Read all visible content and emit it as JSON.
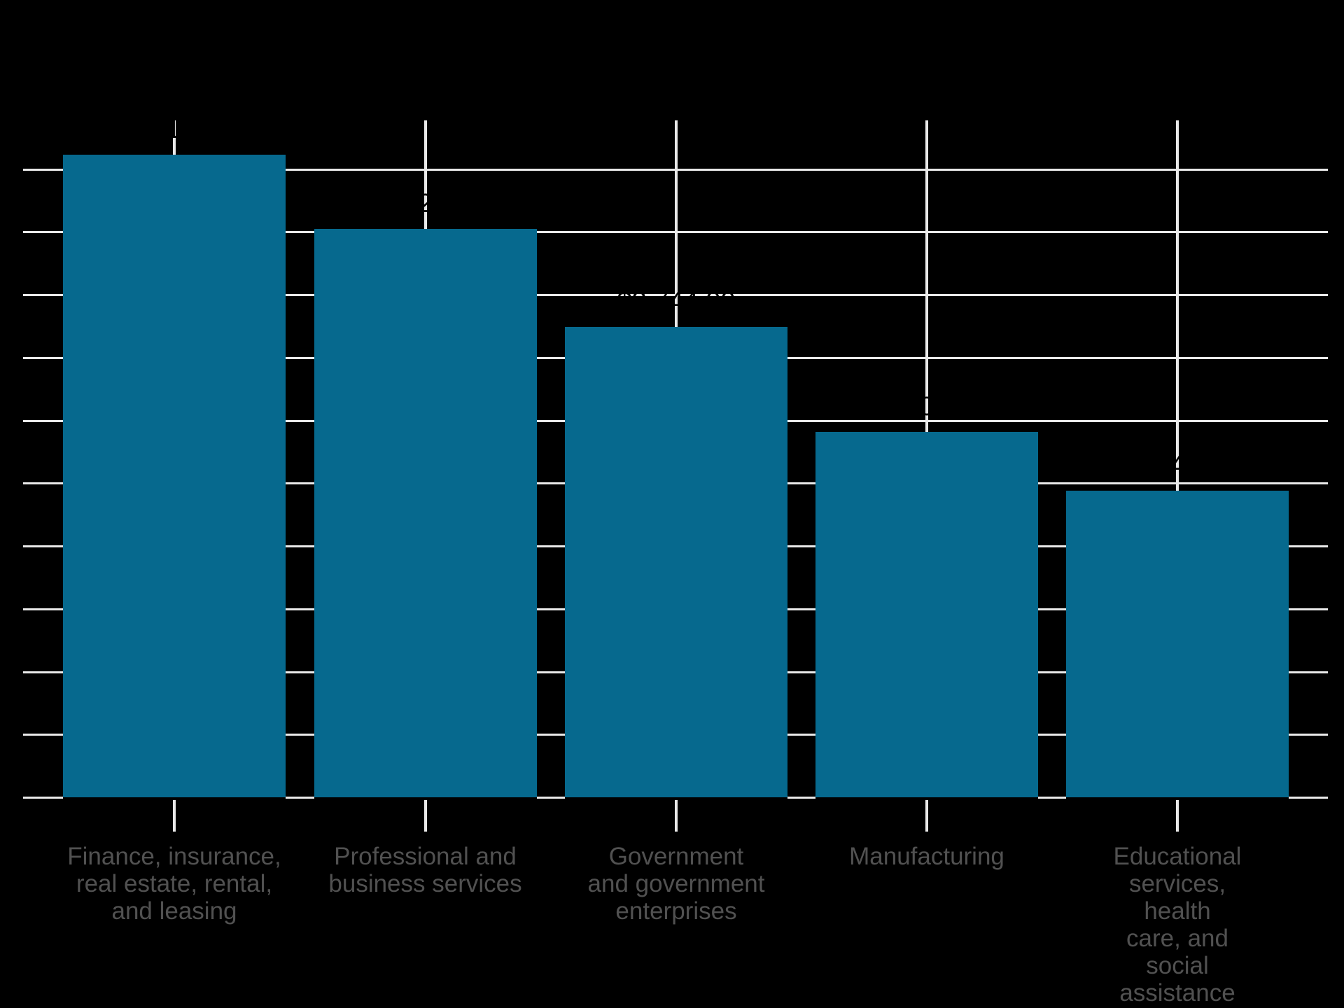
{
  "chart_data": {
    "type": "bar",
    "title": "",
    "categories": [
      [
        "Finance, insurance,",
        "real estate, rental,",
        "and leasing"
      ],
      [
        "Professional and",
        "business services"
      ],
      [
        "Government",
        "and government",
        "enterprises"
      ],
      [
        "Manufacturing"
      ],
      [
        "Educational",
        "services, health",
        "care, and social",
        "assistance"
      ]
    ],
    "values": [
      5113,
      4526,
      3744,
      2908,
      2440
    ],
    "data_labels": [
      "$5,113.00",
      "$4,526.00",
      "$3,744.00",
      "$2,908.00",
      "$2,440.00"
    ],
    "xlabel": "",
    "ylabel": "",
    "ylim": [
      0,
      5380
    ],
    "y_gridline_interval": 500,
    "grid": true,
    "legend": "none",
    "notes": "Transparent-background chart: title, y-axis tick labels and data labels are black and invisible against the dark background; data labels appear only as silhouettes where they cross the white gridlines.",
    "colors": {
      "background": "#000000",
      "bar": "#06698e",
      "bar_edge": "#000000",
      "gridline": "#e9e9e9",
      "tick_mark": "#e9e9e9",
      "category_label": "#515151",
      "data_label": "#000000"
    }
  }
}
